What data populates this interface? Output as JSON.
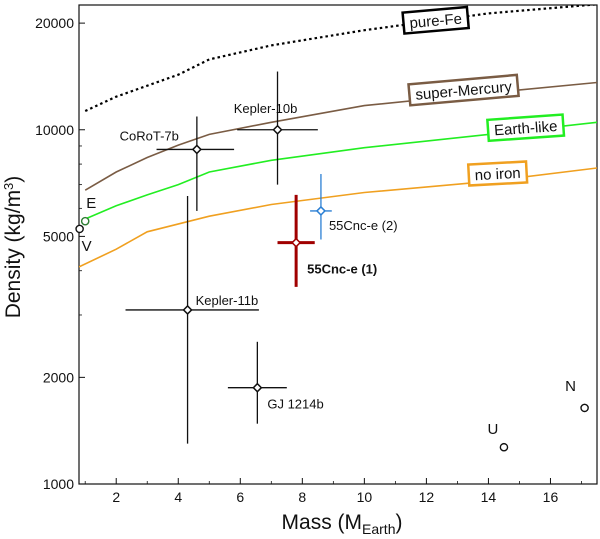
{
  "chart_data": {
    "type": "scatter",
    "xlabel_main": "Mass (M",
    "xlabel_sub": "Earth",
    "xlabel_close": ")",
    "ylabel_main": "Density (kg/m",
    "ylabel_sup": "3",
    "ylabel_close": ")",
    "xlim": [
      0.8,
      17.5
    ],
    "ylim": [
      1000,
      22500
    ],
    "yscale": "log",
    "x_ticks": [
      2,
      4,
      6,
      8,
      10,
      12,
      14,
      16
    ],
    "x_tick_labels": [
      "2",
      "4",
      "6",
      "8",
      "10",
      "12",
      "14",
      "16"
    ],
    "y_ticks": [
      1000,
      2000,
      5000,
      10000,
      20000
    ],
    "y_tick_labels": [
      "1000",
      "2000",
      "5000",
      "10000",
      "20000"
    ],
    "curves": [
      {
        "name": "pure-Fe",
        "label": "pure-Fe",
        "color": "#000000",
        "style": "dotted",
        "x": [
          1.0,
          2.0,
          4.0,
          5.0,
          7.0,
          10.0,
          14.0,
          17.5
        ],
        "y": [
          11300,
          12400,
          14300,
          15800,
          17300,
          19100,
          21300,
          22600
        ]
      },
      {
        "name": "super-Mercury",
        "label": "super-Mercury",
        "color": "#7a5c44",
        "style": "solid",
        "x": [
          1.0,
          2.0,
          3.0,
          4.0,
          5.0,
          7.0,
          10.0,
          14.0,
          17.5
        ],
        "y": [
          6750,
          7600,
          8350,
          9050,
          9700,
          10500,
          11700,
          12700,
          13600
        ]
      },
      {
        "name": "Earth-like",
        "label": "Earth-like",
        "color": "#22ee22",
        "style": "solid",
        "x": [
          1.0,
          2.0,
          3.0,
          4.0,
          5.0,
          7.0,
          10.0,
          14.0,
          17.5
        ],
        "y": [
          5600,
          6100,
          6550,
          7000,
          7600,
          8200,
          8900,
          9700,
          10500
        ]
      },
      {
        "name": "no iron",
        "label": "no iron",
        "color": "#f0a020",
        "style": "solid",
        "x": [
          0.8,
          2.0,
          3.0,
          5.0,
          7.0,
          10.0,
          14.0,
          17.5
        ],
        "y": [
          4100,
          4600,
          5150,
          5700,
          6150,
          6650,
          7150,
          7800
        ]
      }
    ],
    "planets": [
      {
        "name": "CoRoT-7b",
        "label": "CoRoT-7b",
        "x": 4.6,
        "y": 8800,
        "xerr": [
          1.3,
          1.2
        ],
        "yerr": [
          2900,
          2100
        ],
        "color": "#111111",
        "marker": "diamond",
        "bold": false
      },
      {
        "name": "Kepler-10b",
        "label": "Kepler-10b",
        "x": 7.2,
        "y": 10000,
        "xerr": [
          1.3,
          1.3
        ],
        "yerr": [
          3000,
          4600
        ],
        "color": "#111111",
        "marker": "diamond",
        "bold": false
      },
      {
        "name": "Kepler-11b",
        "label": "Kepler-11b",
        "x": 4.3,
        "y": 3100,
        "xerr": [
          2.0,
          2.3
        ],
        "yerr": [
          1800,
          3400
        ],
        "color": "#111111",
        "marker": "diamond",
        "bold": false
      },
      {
        "name": "GJ 1214b",
        "label": "GJ 1214b",
        "x": 6.55,
        "y": 1870,
        "xerr": [
          0.95,
          0.95
        ],
        "yerr": [
          390,
          650
        ],
        "color": "#111111",
        "marker": "diamond",
        "bold": false
      },
      {
        "name": "55Cnc-e (2)",
        "label": "55Cnc-e (2)",
        "x": 8.6,
        "y": 5900,
        "xerr": [
          0.35,
          0.35
        ],
        "yerr": [
          1000,
          1600
        ],
        "color": "#2a7fd4",
        "marker": "diamond",
        "bold": false
      },
      {
        "name": "55Cnc-e (1)",
        "label": "55Cnc-e (1)",
        "x": 7.8,
        "y": 4800,
        "xerr": [
          0.6,
          0.6
        ],
        "yerr": [
          1200,
          1750
        ],
        "color": "#a00000",
        "marker": "diamond",
        "bold": true
      }
    ],
    "solar_system": [
      {
        "name": "E",
        "label": "E",
        "x": 1.0,
        "y": 5520,
        "color": "#2e7d32"
      },
      {
        "name": "V",
        "label": "V",
        "x": 0.82,
        "y": 5250,
        "color": "#111111"
      },
      {
        "name": "U",
        "label": "U",
        "x": 14.5,
        "y": 1270,
        "color": "#111111"
      },
      {
        "name": "N",
        "label": "N",
        "x": 17.1,
        "y": 1640,
        "color": "#111111"
      }
    ]
  }
}
